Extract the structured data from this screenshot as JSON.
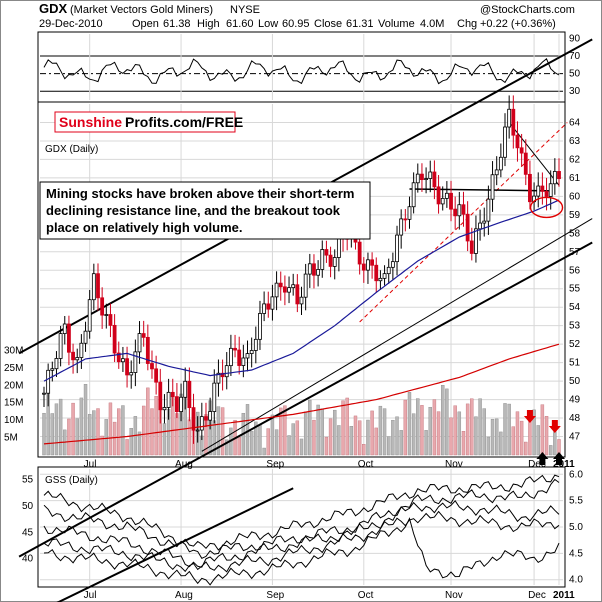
{
  "header": {
    "symbol": "GDX",
    "name": "(Market Vectors Gold Miners)",
    "exchange": "NYSE",
    "credit": "@StockCharts.com",
    "date": "29-Dec-2010",
    "open_label": "Open",
    "open": "61.38",
    "high_label": "High",
    "high": "61.60",
    "low_label": "Low",
    "low": "60.95",
    "close_label": "Close",
    "close": "61.31",
    "volume_label": "Volume",
    "volume": "4.0M",
    "chg_label": "Chg",
    "chg": "+0.22 (+0.36%)"
  },
  "watermark": {
    "brand_red": "Sunshine",
    "brand_black": "Profits.com/FREE"
  },
  "annotation": {
    "lines": [
      "Mining stocks have broken above their short-term",
      "declining resistance line, and the breakout took",
      "place on relatively high volume."
    ]
  },
  "colors": {
    "up": "#000000",
    "down": "#d0001a",
    "ma50": "#1a1a99",
    "ma200": "#d40000",
    "vol_up": "#b8b8b8",
    "vol_down": "#e8a8ad",
    "grid": "#d8d8d8",
    "arrow_red": "#e00000"
  },
  "chart_data": [
    {
      "type": "line",
      "panel": "indicator",
      "ylim": [
        20,
        95
      ],
      "yticks": [
        "90",
        "70",
        "50",
        "30"
      ],
      "reference_lines": [
        70,
        50,
        30
      ]
    },
    {
      "type": "candlestick",
      "panel": "price",
      "title": "GDX (Daily)",
      "ylim": [
        46,
        65
      ],
      "yticks": [
        "64",
        "63",
        "62",
        "61",
        "60",
        "59",
        "58",
        "57",
        "56",
        "55",
        "54",
        "53",
        "52",
        "51",
        "50",
        "49",
        "48",
        "47"
      ],
      "xticks": [
        "Jul",
        "Aug",
        "Sep",
        "Oct",
        "Nov",
        "Dec",
        "2011"
      ],
      "volume_yticks": [
        "30M",
        "25M",
        "20M",
        "15M",
        "10M",
        "5M"
      ],
      "volume_ylim": [
        0,
        33
      ],
      "price_path": [
        [
          0,
          49.0
        ],
        [
          5,
          53.0
        ],
        [
          8,
          51.0
        ],
        [
          12,
          55.0
        ],
        [
          16,
          53.0
        ],
        [
          20,
          50.0
        ],
        [
          24,
          52.5
        ],
        [
          28,
          49.0
        ],
        [
          32,
          48.5
        ],
        [
          34,
          49.5
        ],
        [
          37,
          47.5
        ],
        [
          40,
          48.5
        ],
        [
          43,
          50.5
        ],
        [
          46,
          52.0
        ],
        [
          49,
          51.0
        ],
        [
          52,
          53.0
        ],
        [
          55,
          55.0
        ],
        [
          58,
          55.5
        ],
        [
          61,
          54.0
        ],
        [
          64,
          56.0
        ],
        [
          67,
          57.0
        ],
        [
          70,
          56.5
        ],
        [
          73,
          58.0
        ],
        [
          76,
          57.0
        ],
        [
          79,
          56.0
        ],
        [
          82,
          55.0
        ],
        [
          85,
          58.0
        ],
        [
          88,
          60.0
        ],
        [
          91,
          61.0
        ],
        [
          94,
          60.5
        ],
        [
          97,
          60.0
        ],
        [
          100,
          59.0
        ],
        [
          103,
          57.0
        ],
        [
          106,
          59.5
        ],
        [
          109,
          61.5
        ],
        [
          112,
          64.0
        ],
        [
          114,
          63.0
        ],
        [
          117,
          60.5
        ],
        [
          119,
          60.0
        ],
        [
          122,
          60.2
        ],
        [
          124,
          61.31
        ]
      ],
      "ma50": [
        [
          0,
          50.0
        ],
        [
          10,
          51.2
        ],
        [
          20,
          51.5
        ],
        [
          30,
          50.8
        ],
        [
          40,
          50.3
        ],
        [
          50,
          50.6
        ],
        [
          60,
          51.5
        ],
        [
          70,
          53.0
        ],
        [
          80,
          54.8
        ],
        [
          90,
          56.5
        ],
        [
          100,
          57.8
        ],
        [
          110,
          58.6
        ],
        [
          118,
          59.2
        ],
        [
          124,
          59.8
        ]
      ],
      "ma200": [
        [
          0,
          46.6
        ],
        [
          20,
          47.0
        ],
        [
          40,
          47.6
        ],
        [
          60,
          48.2
        ],
        [
          80,
          49.0
        ],
        [
          100,
          50.2
        ],
        [
          112,
          51.2
        ],
        [
          124,
          52.0
        ]
      ],
      "volume_path": [
        [
          0,
          12
        ],
        [
          10,
          14
        ],
        [
          20,
          9
        ],
        [
          28,
          16
        ],
        [
          40,
          11
        ],
        [
          52,
          8
        ],
        [
          60,
          10
        ],
        [
          70,
          12
        ],
        [
          80,
          9
        ],
        [
          88,
          13
        ],
        [
          96,
          15
        ],
        [
          104,
          12
        ],
        [
          112,
          10
        ],
        [
          118,
          11
        ],
        [
          121,
          8
        ],
        [
          124,
          6
        ]
      ]
    },
    {
      "type": "line",
      "panel": "comparison",
      "title": "GSS (Daily)",
      "ylim_left": [
        35,
        57
      ],
      "yticks_left": [
        "55",
        "50",
        "45",
        "40"
      ],
      "ylim_right": [
        3.9,
        6.1
      ],
      "yticks_right": [
        "6.0",
        "5.5",
        "5.0",
        "4.5",
        "4.0"
      ],
      "xticks": [
        "Jul",
        "Aug",
        "Sep",
        "Oct",
        "Nov",
        "Dec",
        "2011"
      ],
      "series_paths": [
        [
          [
            0,
            5.6
          ],
          [
            20,
            5.2
          ],
          [
            37,
            4.6
          ],
          [
            55,
            4.9
          ],
          [
            75,
            5.3
          ],
          [
            90,
            5.7
          ],
          [
            105,
            5.75
          ],
          [
            115,
            5.8
          ],
          [
            124,
            6.0
          ]
        ],
        [
          [
            0,
            5.3
          ],
          [
            20,
            5.0
          ],
          [
            37,
            4.5
          ],
          [
            55,
            4.7
          ],
          [
            75,
            5.0
          ],
          [
            90,
            5.5
          ],
          [
            105,
            5.6
          ],
          [
            115,
            5.55
          ],
          [
            124,
            5.85
          ]
        ],
        [
          [
            0,
            5.0
          ],
          [
            20,
            4.7
          ],
          [
            37,
            4.3
          ],
          [
            55,
            4.6
          ],
          [
            75,
            4.9
          ],
          [
            90,
            5.4
          ],
          [
            105,
            5.35
          ],
          [
            115,
            5.2
          ],
          [
            124,
            5.3
          ]
        ],
        [
          [
            0,
            4.7
          ],
          [
            20,
            4.5
          ],
          [
            37,
            4.2
          ],
          [
            55,
            4.4
          ],
          [
            75,
            4.8
          ],
          [
            90,
            5.2
          ],
          [
            105,
            5.1
          ],
          [
            115,
            5.0
          ],
          [
            124,
            5.1
          ]
        ],
        [
          [
            0,
            4.5
          ],
          [
            20,
            4.3
          ],
          [
            37,
            4.0
          ],
          [
            55,
            4.2
          ],
          [
            75,
            4.6
          ],
          [
            88,
            5.1
          ],
          [
            92,
            4.2
          ],
          [
            100,
            4.1
          ],
          [
            110,
            4.5
          ],
          [
            118,
            4.4
          ],
          [
            124,
            4.6
          ]
        ]
      ]
    }
  ]
}
